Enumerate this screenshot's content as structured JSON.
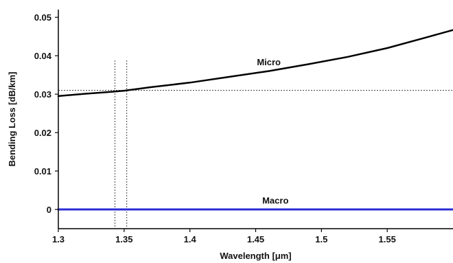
{
  "chart_data": {
    "type": "line",
    "xlabel": "Wavelength [μm]",
    "ylabel": "Bending Loss [dB/km]",
    "xlim": [
      1.3,
      1.6
    ],
    "ylim": [
      -0.005,
      0.052
    ],
    "x_ticks": [
      1.3,
      1.35,
      1.4,
      1.45,
      1.5,
      1.55
    ],
    "x_tick_labels": [
      "1.3",
      "1.35",
      "1.4",
      "1.45",
      "1.5",
      "1.55"
    ],
    "y_ticks": [
      0,
      0.01,
      0.02,
      0.03,
      0.04,
      0.05
    ],
    "y_tick_labels": [
      "0",
      "0.01",
      "0.02",
      "0.03",
      "0.04",
      "0.05"
    ],
    "grid": false,
    "series": [
      {
        "name": "Micro",
        "color": "#000000",
        "x": [
          1.3,
          1.32,
          1.34,
          1.35,
          1.37,
          1.4,
          1.43,
          1.46,
          1.49,
          1.52,
          1.55,
          1.58,
          1.6
        ],
        "y": [
          0.0295,
          0.0301,
          0.0306,
          0.0309,
          0.0318,
          0.033,
          0.0345,
          0.036,
          0.0378,
          0.0397,
          0.042,
          0.0448,
          0.0467
        ]
      },
      {
        "name": "Macro",
        "color": "#2b2bd6",
        "x": [
          1.3,
          1.6
        ],
        "y": [
          0,
          0
        ]
      }
    ],
    "reference_lines": {
      "horizontal_dotted_y": [
        0.031
      ],
      "vertical_dotted_x": [
        1.343,
        1.352
      ]
    },
    "annotations": [
      {
        "text": "Micro",
        "x": 1.46,
        "y": 0.0375
      },
      {
        "text": "Macro",
        "x": 1.465,
        "y": 0.0015
      }
    ]
  }
}
